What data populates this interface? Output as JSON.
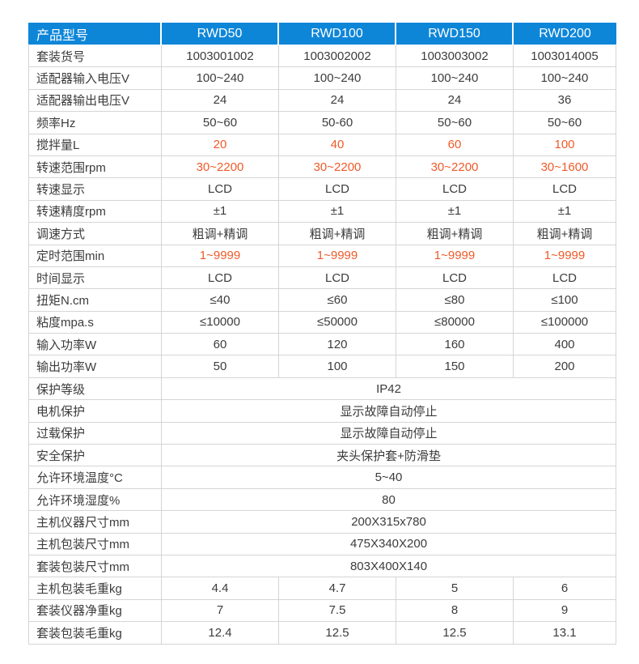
{
  "table": {
    "header": {
      "label": "产品型号",
      "columns": [
        "RWD50",
        "RWD100",
        "RWD150",
        "RWD200"
      ]
    },
    "rows": [
      {
        "label": "套装货号",
        "values": [
          "1003001002",
          "1003002002",
          "1003003002",
          "1003014005"
        ]
      },
      {
        "label": "适配器输入电压V",
        "values": [
          "100~240",
          "100~240",
          "100~240",
          "100~240"
        ]
      },
      {
        "label": "适配器输出电压V",
        "values": [
          "24",
          "24",
          "24",
          "36"
        ]
      },
      {
        "label": "频率Hz",
        "values": [
          "50~60",
          "50-60",
          "50~60",
          "50~60"
        ]
      },
      {
        "label": "搅拌量L",
        "values": [
          "20",
          "40",
          "60",
          "100"
        ],
        "highlight": true
      },
      {
        "label": "转速范围rpm",
        "values": [
          "30~2200",
          "30~2200",
          "30~2200",
          "30~1600"
        ],
        "highlight": true
      },
      {
        "label": "转速显示",
        "values": [
          "LCD",
          "LCD",
          "LCD",
          "LCD"
        ]
      },
      {
        "label": "转速精度rpm",
        "values": [
          "±1",
          "±1",
          "±1",
          "±1"
        ]
      },
      {
        "label": "调速方式",
        "values": [
          "粗调+精调",
          "粗调+精调",
          "粗调+精调",
          "粗调+精调"
        ]
      },
      {
        "label": "定时范围min",
        "values": [
          "1~9999",
          "1~9999",
          "1~9999",
          "1~9999"
        ],
        "highlight": true
      },
      {
        "label": "时间显示",
        "values": [
          "LCD",
          "LCD",
          "LCD",
          "LCD"
        ]
      },
      {
        "label": "扭矩N.cm",
        "values": [
          "≤40",
          "≤60",
          "≤80",
          "≤100"
        ]
      },
      {
        "label": "粘度mpa.s",
        "values": [
          "≤10000",
          "≤50000",
          "≤80000",
          "≤100000"
        ]
      },
      {
        "label": "输入功率W",
        "values": [
          "60",
          "120",
          "160",
          "400"
        ]
      },
      {
        "label": "输出功率W",
        "values": [
          "50",
          "100",
          "150",
          "200"
        ]
      },
      {
        "label": "保护等级",
        "merged": "IP42"
      },
      {
        "label": "电机保护",
        "merged": "显示故障自动停止"
      },
      {
        "label": "过载保护",
        "merged": "显示故障自动停止"
      },
      {
        "label": "安全保护",
        "merged": "夹头保护套+防滑垫"
      },
      {
        "label": "允许环境温度°C",
        "merged": "5~40"
      },
      {
        "label": "允许环境湿度%",
        "merged": "80"
      },
      {
        "label": "主机仪器尺寸mm",
        "merged": "200X315x780"
      },
      {
        "label": "主机包装尺寸mm",
        "merged": "475X340X200"
      },
      {
        "label": "套装包装尺寸mm",
        "merged": "803X400X140"
      },
      {
        "label": "主机包装毛重kg",
        "values": [
          "4.4",
          "4.7",
          "5",
          "6"
        ]
      },
      {
        "label": "套装仪器净重kg",
        "values": [
          "7",
          "7.5",
          "8",
          "9"
        ]
      },
      {
        "label": "套装包装毛重kg",
        "values": [
          "12.4",
          "12.5",
          "12.5",
          "13.1"
        ]
      }
    ],
    "colors": {
      "header_bg": "#0e86d8",
      "header_text": "#ffffff",
      "highlight_text": "#f05a28",
      "border": "#d5d5d5",
      "body_text": "#3c3c3c"
    }
  }
}
